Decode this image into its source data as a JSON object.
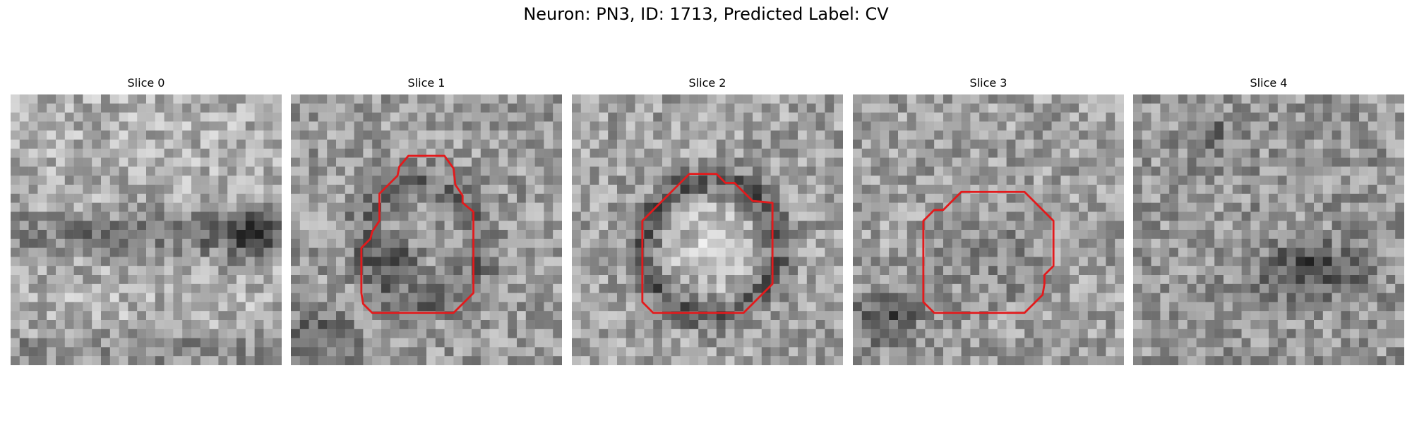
{
  "figure": {
    "title": "Neuron: PN3, ID: 1713, Predicted Label: CV",
    "contour_color": "#e31a1c",
    "colormap": "gray"
  },
  "panels": [
    {
      "label": "Slice 0",
      "has_contour": false
    },
    {
      "label": "Slice 1",
      "has_contour": true
    },
    {
      "label": "Slice 2",
      "has_contour": true
    },
    {
      "label": "Slice 3",
      "has_contour": true
    },
    {
      "label": "Slice 4",
      "has_contour": false
    }
  ]
}
